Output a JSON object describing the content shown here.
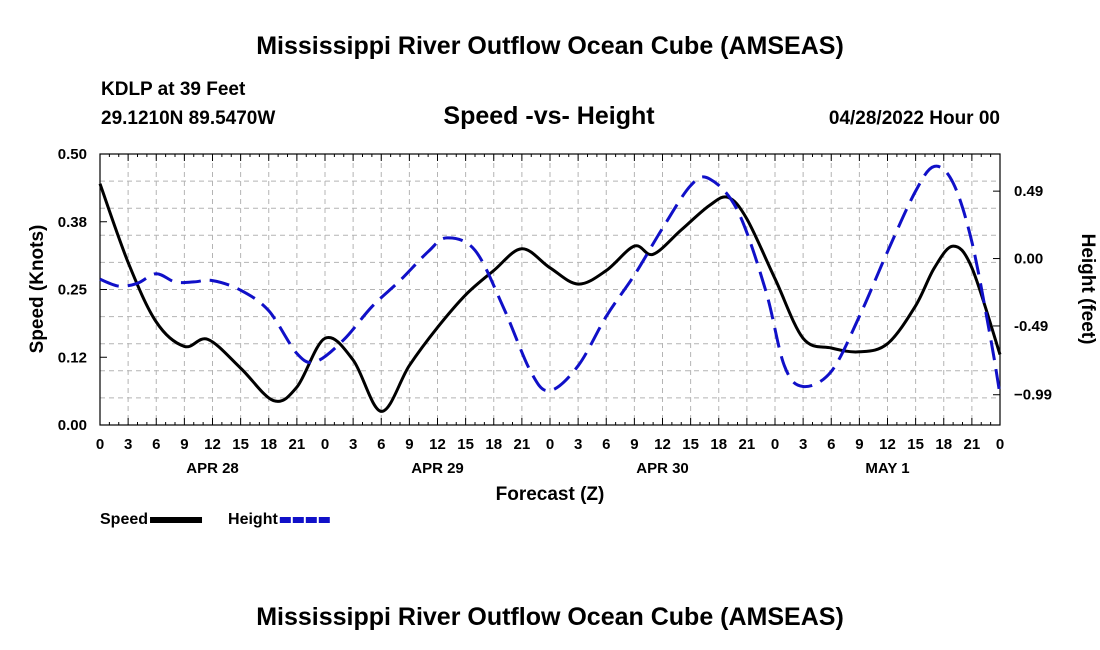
{
  "chart_data": {
    "type": "line",
    "title": "Mississippi River Outflow Ocean Cube (AMSEAS)",
    "footer_title": "Mississippi River Outflow Ocean Cube (AMSEAS)",
    "subtitle": "Speed -vs- Height",
    "station": "KDLP at 39 Feet",
    "location": "29.1210N  89.5470W",
    "run_time": "04/28/2022 Hour 00",
    "xlabel": "Forecast (Z)",
    "ylabel": "Speed (Knots)",
    "y2label": "Height (feet)",
    "xlim": [
      0,
      96
    ],
    "ylim": [
      0,
      0.5
    ],
    "y2lim": [
      -1.21,
      0.76
    ],
    "x_tick_labels": [
      "0",
      "3",
      "6",
      "9",
      "12",
      "15",
      "18",
      "21",
      "0",
      "3",
      "6",
      "9",
      "12",
      "15",
      "18",
      "21",
      "0",
      "3",
      "6",
      "9",
      "12",
      "15",
      "18",
      "21",
      "0",
      "3",
      "6",
      "9",
      "12",
      "15",
      "18",
      "21",
      "0"
    ],
    "day_labels": [
      {
        "label": "APR 28",
        "x": 12
      },
      {
        "label": "APR 29",
        "x": 36
      },
      {
        "label": "APR 30",
        "x": 60
      },
      {
        "label": "MAY 1",
        "x": 84
      }
    ],
    "y_ticks": [
      {
        "value": 0.0,
        "label": "0.00"
      },
      {
        "value": 0.125,
        "label": "0.12"
      },
      {
        "value": 0.25,
        "label": "0.25"
      },
      {
        "value": 0.375,
        "label": "0.38"
      },
      {
        "value": 0.5,
        "label": "0.50"
      }
    ],
    "y2_ticks": [
      {
        "value": 0.49,
        "label": "0.49"
      },
      {
        "value": 0.0,
        "label": "0.00"
      },
      {
        "value": -0.49,
        "label": "-0.49"
      },
      {
        "value": -0.99,
        "label": "−0.99"
      }
    ],
    "legend": [
      {
        "name": "Speed",
        "color": "#000000",
        "dash": false
      },
      {
        "name": "Height",
        "color": "#1010c8",
        "dash": true
      }
    ],
    "series": [
      {
        "name": "Speed",
        "axis": "left",
        "color": "#000000",
        "points": [
          [
            0,
            0.445
          ],
          [
            3,
            0.3
          ],
          [
            6,
            0.19
          ],
          [
            9,
            0.145
          ],
          [
            11.5,
            0.158
          ],
          [
            15,
            0.105
          ],
          [
            18.5,
            0.045
          ],
          [
            21,
            0.07
          ],
          [
            24,
            0.16
          ],
          [
            27,
            0.12
          ],
          [
            30,
            0.025
          ],
          [
            33,
            0.11
          ],
          [
            36,
            0.18
          ],
          [
            39,
            0.24
          ],
          [
            42,
            0.285
          ],
          [
            45,
            0.325
          ],
          [
            48,
            0.29
          ],
          [
            51,
            0.26
          ],
          [
            54,
            0.285
          ],
          [
            57,
            0.33
          ],
          [
            59,
            0.315
          ],
          [
            62,
            0.36
          ],
          [
            65,
            0.405
          ],
          [
            67,
            0.42
          ],
          [
            69,
            0.38
          ],
          [
            72,
            0.27
          ],
          [
            75,
            0.16
          ],
          [
            78,
            0.142
          ],
          [
            81,
            0.135
          ],
          [
            84,
            0.15
          ],
          [
            87,
            0.22
          ],
          [
            89,
            0.29
          ],
          [
            91,
            0.33
          ],
          [
            93,
            0.29
          ],
          [
            96,
            0.13
          ]
        ]
      },
      {
        "name": "Height",
        "axis": "right",
        "color": "#1010c8",
        "points": [
          [
            0,
            -0.15
          ],
          [
            2,
            -0.2
          ],
          [
            4,
            -0.18
          ],
          [
            6,
            -0.11
          ],
          [
            8,
            -0.17
          ],
          [
            10,
            -0.17
          ],
          [
            12,
            -0.16
          ],
          [
            15,
            -0.23
          ],
          [
            18,
            -0.38
          ],
          [
            21,
            -0.69
          ],
          [
            23,
            -0.75
          ],
          [
            26,
            -0.59
          ],
          [
            29,
            -0.35
          ],
          [
            32,
            -0.16
          ],
          [
            35,
            0.05
          ],
          [
            37,
            0.15
          ],
          [
            40,
            0.06
          ],
          [
            43,
            -0.35
          ],
          [
            46,
            -0.83
          ],
          [
            48,
            -0.96
          ],
          [
            51,
            -0.78
          ],
          [
            54,
            -0.42
          ],
          [
            57,
            -0.12
          ],
          [
            60,
            0.22
          ],
          [
            63,
            0.53
          ],
          [
            65,
            0.58
          ],
          [
            68,
            0.35
          ],
          [
            71,
            -0.23
          ],
          [
            73,
            -0.78
          ],
          [
            75,
            -0.93
          ],
          [
            78,
            -0.82
          ],
          [
            81,
            -0.42
          ],
          [
            84,
            0.05
          ],
          [
            87,
            0.49
          ],
          [
            89,
            0.67
          ],
          [
            91,
            0.55
          ],
          [
            93,
            0.12
          ],
          [
            95,
            -0.58
          ],
          [
            96,
            -0.99
          ]
        ]
      }
    ]
  }
}
